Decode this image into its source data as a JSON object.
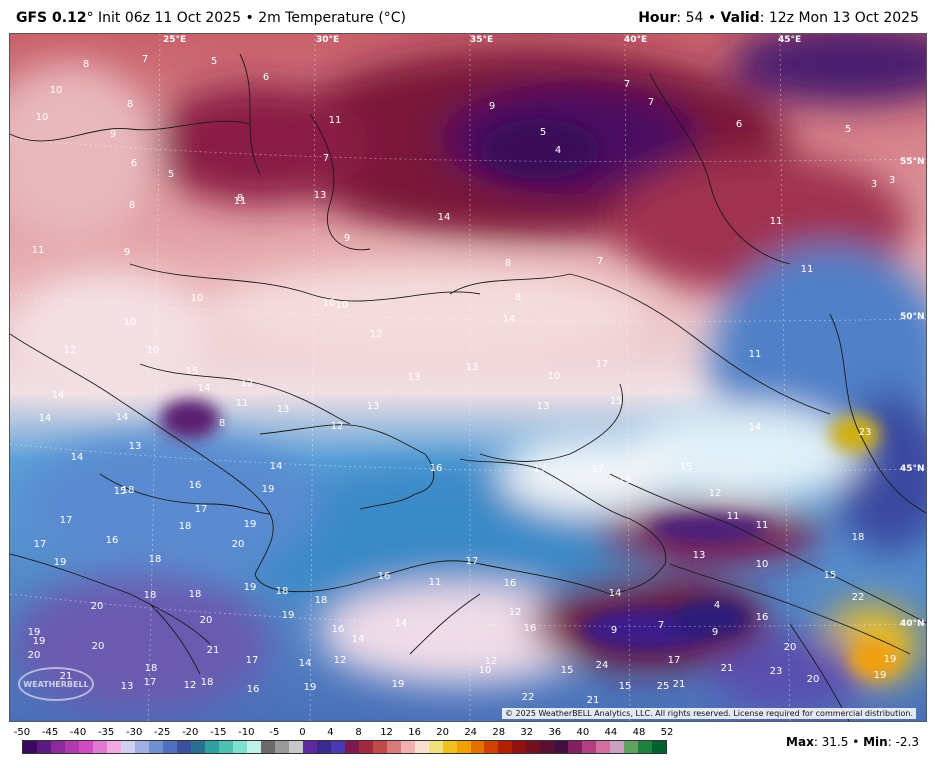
{
  "header": {
    "model": "GFS 0.12",
    "init": "° Init 06z 11 Oct 2025",
    "bullet": " • ",
    "field": "2m Temperature (°C)",
    "hour_label": "Hour",
    "hour_value": ": 54 • ",
    "valid_label": "Valid",
    "valid_value": ": 12z Mon 13 Oct 2025"
  },
  "map": {
    "longitude_labels": [
      "25°E",
      "30°E",
      "35°E",
      "40°E",
      "45°E"
    ],
    "latitude_labels": [
      "55°N",
      "50°N",
      "45°N",
      "40°N"
    ],
    "temperature_labels": [
      "8",
      "7",
      "5",
      "6",
      "10",
      "8",
      "11",
      "9",
      "10",
      "9",
      "5",
      "4",
      "7",
      "7",
      "6",
      "5",
      "3",
      "3",
      "6",
      "5",
      "7",
      "8",
      "13",
      "14",
      "11",
      "9",
      "11",
      "11",
      "9",
      "8",
      "8",
      "7",
      "8",
      "14",
      "11",
      "10",
      "10",
      "10",
      "12",
      "10",
      "12",
      "13",
      "13",
      "10",
      "10",
      "17",
      "11",
      "15",
      "14",
      "12",
      "11",
      "13",
      "13",
      "14",
      "14",
      "14",
      "13",
      "15",
      "8",
      "12",
      "13",
      "14",
      "14",
      "15",
      "14",
      "16",
      "17",
      "17",
      "15",
      "12",
      "15",
      "16",
      "23",
      "17",
      "18",
      "19",
      "19",
      "11",
      "11",
      "18",
      "17",
      "16",
      "20",
      "19",
      "17",
      "13",
      "18",
      "10",
      "18",
      "17",
      "16",
      "11",
      "16",
      "14",
      "15",
      "22",
      "19",
      "18",
      "18",
      "18",
      "19",
      "18",
      "20",
      "16",
      "14",
      "12",
      "16",
      "14",
      "9",
      "7",
      "4",
      "9",
      "16",
      "20",
      "19",
      "20",
      "20",
      "20",
      "21",
      "17",
      "14",
      "12",
      "12",
      "10",
      "17",
      "15",
      "24",
      "23",
      "20",
      "19",
      "18",
      "21",
      "19",
      "18",
      "17",
      "16",
      "13",
      "12",
      "19",
      "19",
      "22",
      "21",
      "15",
      "25",
      "21",
      "21",
      "19"
    ],
    "copyright": "© 2025 WeatherBELL Analytics, LLC. All rights reserved. License required for commercial distribution.",
    "logo_text": "WEATHERBELL"
  },
  "colorbar": {
    "ticks": [
      "-50",
      "-45",
      "-40",
      "-35",
      "-30",
      "-25",
      "-20",
      "-15",
      "-10",
      "-5",
      "0",
      "4",
      "8",
      "12",
      "16",
      "20",
      "24",
      "28",
      "32",
      "36",
      "40",
      "44",
      "48",
      "52"
    ],
    "colors": [
      "#3a0a5e",
      "#5a1a7e",
      "#8a2a9e",
      "#b03ab0",
      "#d04ac0",
      "#e07ad0",
      "#f0aae0",
      "#d0d0f0",
      "#a0b0e0",
      "#7090d0",
      "#5070c0",
      "#3a50a0",
      "#2a7090",
      "#30a0a0",
      "#50c0b0",
      "#80e0d0",
      "#c0f0e8",
      "#6a6a6a",
      "#9a9a9a",
      "#c8c8c8",
      "#5a2a9e",
      "#3a2a8e",
      "#4a3ab0",
      "#7a1a4e",
      "#a02a3e",
      "#c04a4a",
      "#d87a7a",
      "#f0b0b0",
      "#f8e0d0",
      "#f0e080",
      "#f0c020",
      "#f0a000",
      "#e07000",
      "#d04000",
      "#b02000",
      "#901010",
      "#701020",
      "#5a1030",
      "#401040",
      "#802060",
      "#b04080",
      "#d070a0",
      "#c8a0c0",
      "#60a060",
      "#208040",
      "#006030"
    ],
    "max_label": "Max",
    "max_value": ": 31.5 • ",
    "min_label": "Min",
    "min_value": ": -2.3"
  }
}
